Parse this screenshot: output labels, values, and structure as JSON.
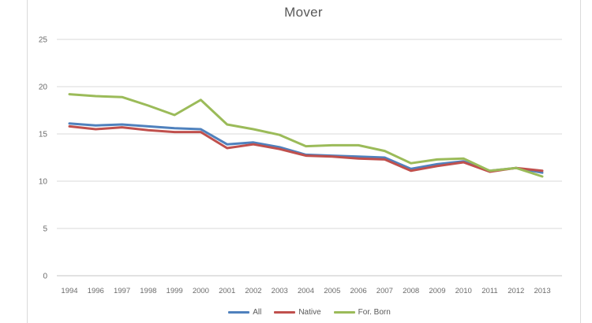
{
  "chart_data": {
    "type": "line",
    "title": "Mover",
    "categories": [
      "1994",
      "1996",
      "1997",
      "1998",
      "1999",
      "2000",
      "2001",
      "2002",
      "2003",
      "2004",
      "2005",
      "2006",
      "2007",
      "2008",
      "2009",
      "2010",
      "2011",
      "2012",
      "2013"
    ],
    "series": [
      {
        "name": "All",
        "color": "#4F81BD",
        "values": [
          16.1,
          15.9,
          16.0,
          15.8,
          15.6,
          15.5,
          13.9,
          14.1,
          13.6,
          12.8,
          12.7,
          12.6,
          12.5,
          11.3,
          11.8,
          12.1,
          11.1,
          11.4,
          10.9
        ]
      },
      {
        "name": "Native",
        "color": "#C0504D",
        "values": [
          15.8,
          15.5,
          15.7,
          15.4,
          15.2,
          15.2,
          13.5,
          13.9,
          13.4,
          12.7,
          12.6,
          12.4,
          12.3,
          11.1,
          11.6,
          12.0,
          11.0,
          11.4,
          11.1
        ]
      },
      {
        "name": "For. Born",
        "color": "#9BBB59",
        "values": [
          19.2,
          19.0,
          18.9,
          18.0,
          17.0,
          18.6,
          16.0,
          15.5,
          14.9,
          13.7,
          13.8,
          13.8,
          13.2,
          11.9,
          12.3,
          12.4,
          11.1,
          11.4,
          10.5
        ]
      }
    ],
    "xlabel": "",
    "ylabel": "",
    "ylim": [
      0,
      25
    ],
    "y_tick_step": 5,
    "y_tick_labels": [
      "0",
      "5",
      "10",
      "15",
      "20",
      "25"
    ],
    "grid": true,
    "legend_position": "bottom"
  }
}
